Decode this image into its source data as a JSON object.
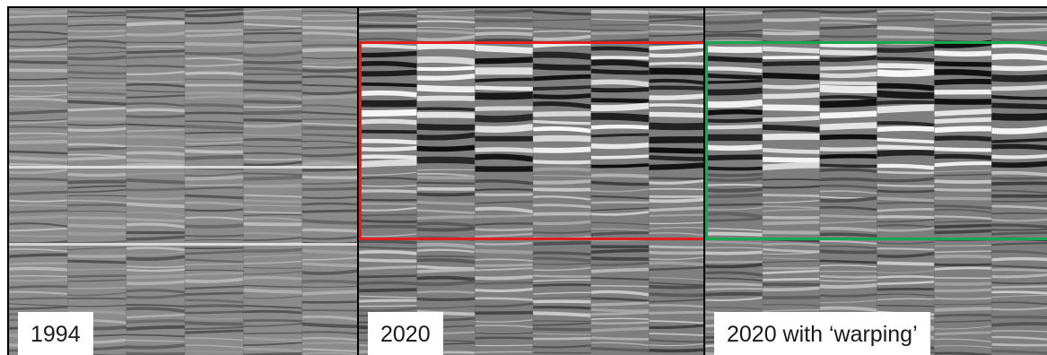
{
  "panels": [
    {
      "label": "1994",
      "background": "#8b8b8b",
      "contrast": 0.55,
      "bright_horizons": true,
      "highlight": null
    },
    {
      "label": "2020",
      "background": "#7e7e7e",
      "contrast": 1.0,
      "bright_horizons": false,
      "highlight": {
        "color": "#e02020"
      }
    },
    {
      "label": "2020 with ‘warping’",
      "background": "#7e7e7e",
      "contrast": 1.0,
      "bright_horizons": false,
      "highlight": {
        "color": "#1aa64a"
      }
    }
  ]
}
